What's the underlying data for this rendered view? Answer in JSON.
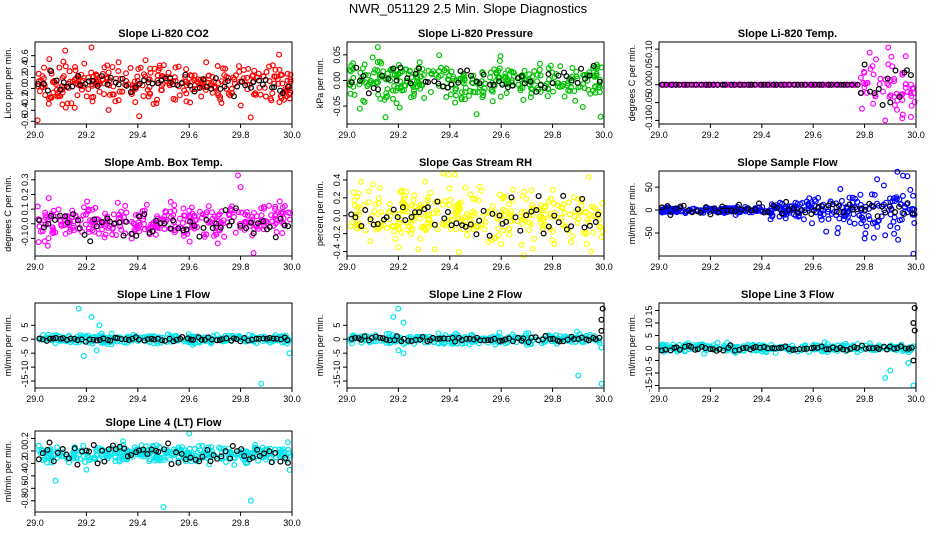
{
  "page": {
    "title": "NWR_051129  2.5 Min. Slope Diagnostics"
  },
  "chart_data": [
    {
      "id": "co2",
      "type": "scatter",
      "title": "Slope Li-820 CO2",
      "ylabel": "Lico ppm per min.",
      "xlabel": "",
      "xlim": [
        29.0,
        30.0
      ],
      "ylim": [
        -0.65,
        0.85
      ],
      "yticks": [
        -0.6,
        -0.4,
        -0.2,
        0.0,
        0.2,
        0.4,
        0.6
      ],
      "ytick_labels": [
        "-0.6",
        "-0.4",
        "-0.2",
        "0.0",
        "0.2",
        "0.4",
        "0.6"
      ],
      "xticks": [
        29.0,
        29.2,
        29.4,
        29.6,
        29.8,
        30.0
      ],
      "xtick_labels": [
        "29.0",
        "29.2",
        "29.4",
        "29.6",
        "29.8",
        "30.0"
      ],
      "series": [
        {
          "name": "all",
          "color": "#ff0000",
          "values_summary": "dense points around 0.1, spread about ±0.3, outliers to 0.75 and -0.6"
        },
        {
          "name": "selected",
          "color": "#000000",
          "values_summary": "sparse points around 0.05 to 0.1"
        }
      ],
      "gen": {
        "n": 320,
        "center": 0.1,
        "spread": 0.18,
        "outliers": [
          [
            29.22,
            0.75
          ],
          [
            29.01,
            -0.58
          ],
          [
            29.95,
            0.62
          ],
          [
            29.12,
            -0.35
          ]
        ],
        "black_n": 60,
        "black_center": 0.08,
        "black_spread": 0.08
      }
    },
    {
      "id": "pressure",
      "type": "scatter",
      "title": "Slope Li-820 Pressure",
      "ylabel": "kPa per min.",
      "xlabel": "",
      "xlim": [
        29.0,
        30.0
      ],
      "ylim": [
        -0.085,
        0.075
      ],
      "yticks": [
        -0.05,
        0.0,
        0.05
      ],
      "ytick_labels": [
        "-0.05",
        "0.00",
        "0.05"
      ],
      "xticks": [
        29.0,
        29.2,
        29.4,
        29.6,
        29.8,
        30.0
      ],
      "xtick_labels": [
        "29.0",
        "29.2",
        "29.4",
        "29.6",
        "29.8",
        "30.0"
      ],
      "series": [
        {
          "name": "all",
          "color": "#00c000",
          "values_summary": "dense points around 0.0, spread ±0.03, wider early"
        },
        {
          "name": "selected",
          "color": "#000000",
          "values_summary": "sparse points near 0.0"
        }
      ],
      "gen": {
        "n": 330,
        "center": 0.0,
        "spread": 0.02,
        "outliers": [
          [
            29.12,
            0.065
          ],
          [
            29.15,
            -0.072
          ],
          [
            29.05,
            -0.055
          ],
          [
            29.1,
            0.045
          ]
        ],
        "black_n": 55,
        "black_center": 0.0,
        "black_spread": 0.012
      }
    },
    {
      "id": "temp",
      "type": "scatter",
      "title": "Slope Li-820 Temp.",
      "ylabel": "degrees C per min.",
      "xlabel": "",
      "xlim": [
        29.0,
        30.0
      ],
      "ylim": [
        -0.11,
        0.12
      ],
      "yticks": [
        -0.1,
        -0.05,
        0.0,
        0.05,
        0.1
      ],
      "ytick_labels": [
        "-0.10",
        "-0.05",
        "0.00",
        "0.05",
        "0.10"
      ],
      "xticks": [
        29.0,
        29.2,
        29.4,
        29.6,
        29.8,
        30.0
      ],
      "xtick_labels": [
        "29.0",
        "29.2",
        "29.4",
        "29.6",
        "29.8",
        "30.0"
      ],
      "series": [
        {
          "name": "all",
          "color": "#ff00ff",
          "values_summary": "flat at 0.00 until 29.75, then scattered ±0.08"
        },
        {
          "name": "selected",
          "color": "#000000",
          "values_summary": "flat at 0.00, scattered after 29.8"
        }
      ],
      "gen": {
        "n": 260,
        "center": 0.0,
        "spread": 0.0,
        "late_start": 29.78,
        "late_spread": 0.04,
        "outliers": [
          [
            29.82,
            0.09
          ],
          [
            29.88,
            -0.1
          ],
          [
            29.98,
            -0.09
          ],
          [
            29.96,
            0.08
          ]
        ],
        "black_n": 60,
        "black_center": 0.0,
        "black_spread": 0.0
      }
    },
    {
      "id": "boxtemp",
      "type": "scatter",
      "title": "Slope Amb. Box Temp.",
      "ylabel": "degrees C per min.",
      "xlabel": "",
      "xlim": [
        29.0,
        30.0
      ],
      "ylim": [
        -0.22,
        0.36
      ],
      "yticks": [
        -0.1,
        0.0,
        0.1,
        0.2,
        0.3
      ],
      "ytick_labels": [
        "-0.1",
        "0.0",
        "0.1",
        "0.2",
        "0.3"
      ],
      "xticks": [
        29.0,
        29.2,
        29.4,
        29.6,
        29.8,
        30.0
      ],
      "xtick_labels": [
        "29.0",
        "29.2",
        "29.4",
        "29.6",
        "29.8",
        "30.0"
      ],
      "series": [
        {
          "name": "all",
          "color": "#ff00ff",
          "values_summary": "dense points around 0.02, spread ±0.1, peak near 29.8 at 0.3"
        },
        {
          "name": "selected",
          "color": "#000000",
          "values_summary": "sparse points near 0.0"
        }
      ],
      "gen": {
        "n": 320,
        "center": 0.02,
        "spread": 0.06,
        "outliers": [
          [
            29.79,
            0.33
          ],
          [
            29.8,
            0.25
          ],
          [
            29.85,
            -0.2
          ],
          [
            29.05,
            -0.15
          ]
        ],
        "black_n": 60,
        "black_center": 0.0,
        "black_spread": 0.05
      }
    },
    {
      "id": "rh",
      "type": "scatter",
      "title": "Slope Gas Stream RH",
      "ylabel": "percent per min.",
      "xlabel": "",
      "xlim": [
        29.0,
        30.0
      ],
      "ylim": [
        -0.45,
        0.5
      ],
      "yticks": [
        -0.4,
        -0.2,
        0.0,
        0.2,
        0.4
      ],
      "ytick_labels": [
        "-0.4",
        "-0.2",
        "0.0",
        "0.2",
        "0.4"
      ],
      "xticks": [
        29.0,
        29.2,
        29.4,
        29.6,
        29.8,
        30.0
      ],
      "xtick_labels": [
        "29.0",
        "29.2",
        "29.4",
        "29.6",
        "29.8",
        "30.0"
      ],
      "series": [
        {
          "name": "all",
          "color": "#ffff00",
          "values_summary": "dense points around 0.0, spread ±0.25"
        },
        {
          "name": "selected",
          "color": "#000000",
          "values_summary": "sparse points ±0.2"
        }
      ],
      "gen": {
        "n": 330,
        "center": 0.0,
        "spread": 0.14,
        "outliers": [
          [
            29.42,
            0.46
          ],
          [
            29.2,
            -0.35
          ],
          [
            29.95,
            -0.4
          ],
          [
            29.1,
            0.35
          ]
        ],
        "black_n": 55,
        "black_center": 0.0,
        "black_spread": 0.12
      }
    },
    {
      "id": "sampleflow",
      "type": "scatter",
      "title": "Slope Sample Flow",
      "ylabel": "ml/min per min.",
      "xlabel": "",
      "xlim": [
        29.0,
        30.0
      ],
      "ylim": [
        -100,
        85
      ],
      "yticks": [
        -50,
        0,
        50
      ],
      "ytick_labels": [
        "-50",
        "0",
        "50"
      ],
      "xticks": [
        29.0,
        29.2,
        29.4,
        29.6,
        29.8,
        30.0
      ],
      "xtick_labels": [
        "29.0",
        "29.2",
        "29.4",
        "29.6",
        "29.8",
        "30.0"
      ],
      "series": [
        {
          "name": "all",
          "color": "#0000ff",
          "values_summary": "near 0 before 29.4, widening scatter to ±60 by 30.0"
        },
        {
          "name": "selected",
          "color": "#000000",
          "values_summary": "near 0, a few to ±30, one at -95"
        }
      ],
      "gen": {
        "n": 330,
        "center": 0,
        "spread": 3,
        "growth": 30,
        "outliers": [
          [
            29.95,
            75
          ],
          [
            29.8,
            -62
          ],
          [
            29.99,
            -95
          ],
          [
            29.88,
            -55
          ]
        ],
        "black_n": 60,
        "black_center": 0,
        "black_spread": 8
      }
    },
    {
      "id": "line1",
      "type": "scatter",
      "title": "Slope Line 1 Flow",
      "ylabel": "ml/min per min.",
      "xlabel": "",
      "xlim": [
        29.0,
        30.0
      ],
      "ylim": [
        -17.5,
        13
      ],
      "yticks": [
        -15,
        -10,
        -5,
        0,
        5
      ],
      "ytick_labels": [
        "-15",
        "-10",
        "-5",
        "0",
        "5"
      ],
      "xticks": [
        29.0,
        29.2,
        29.4,
        29.6,
        29.8,
        30.0
      ],
      "xtick_labels": [
        "29.0",
        "29.2",
        "29.4",
        "29.6",
        "29.8",
        "30.0"
      ],
      "series": [
        {
          "name": "all",
          "color": "#00e5ee",
          "values_summary": "tight band around 0, few outliers ±10"
        },
        {
          "name": "selected",
          "color": "#000000",
          "values_summary": "on 0 line"
        }
      ],
      "gen": {
        "n": 300,
        "center": 0,
        "spread": 0.8,
        "outliers": [
          [
            29.17,
            11
          ],
          [
            29.22,
            8
          ],
          [
            29.25,
            5
          ],
          [
            29.19,
            -6
          ],
          [
            29.24,
            -4
          ],
          [
            29.88,
            -16
          ],
          [
            29.99,
            -5
          ]
        ],
        "black_n": 70,
        "black_center": 0,
        "black_spread": 0.4
      }
    },
    {
      "id": "line2",
      "type": "scatter",
      "title": "Slope Line 2 Flow",
      "ylabel": "ml/min per min.",
      "xlabel": "",
      "xlim": [
        29.0,
        30.0
      ],
      "ylim": [
        -17.5,
        13
      ],
      "yticks": [
        -15,
        -10,
        -5,
        0,
        5
      ],
      "ytick_labels": [
        "-15",
        "-10",
        "-5",
        "0",
        "5"
      ],
      "xticks": [
        29.0,
        29.2,
        29.4,
        29.6,
        29.8,
        30.0
      ],
      "xtick_labels": [
        "29.0",
        "29.2",
        "29.4",
        "29.6",
        "29.8",
        "30.0"
      ],
      "series": [
        {
          "name": "all",
          "color": "#00e5ee",
          "values_summary": "tight band around 0, outliers around 29.2 and at 30.0"
        },
        {
          "name": "selected",
          "color": "#000000",
          "values_summary": "on 0 line, spikes at 30.0"
        }
      ],
      "gen": {
        "n": 300,
        "center": 0,
        "spread": 0.9,
        "outliers": [
          [
            29.2,
            11
          ],
          [
            29.18,
            8
          ],
          [
            29.22,
            6
          ],
          [
            29.2,
            -4
          ],
          [
            29.22,
            -5
          ],
          [
            29.9,
            -13
          ],
          [
            29.99,
            -16
          ],
          [
            29.99,
            -3
          ]
        ],
        "black_n": 70,
        "black_center": 0,
        "black_spread": 0.5,
        "black_extra": [
          [
            29.995,
            11
          ],
          [
            29.99,
            7
          ],
          [
            29.99,
            3
          ]
        ]
      }
    },
    {
      "id": "line3",
      "type": "scatter",
      "title": "Slope Line 3 Flow",
      "ylabel": "ml/min per min.",
      "xlabel": "",
      "xlim": [
        29.0,
        30.0
      ],
      "ylim": [
        -16,
        18
      ],
      "yticks": [
        -15,
        -10,
        -5,
        0,
        5,
        10,
        15
      ],
      "ytick_labels": [
        "-15",
        "-10",
        "-5",
        "0",
        "5",
        "10",
        "15"
      ],
      "xticks": [
        29.0,
        29.2,
        29.4,
        29.6,
        29.8,
        30.0
      ],
      "xtick_labels": [
        "29.0",
        "29.2",
        "29.4",
        "29.6",
        "29.8",
        "30.0"
      ],
      "series": [
        {
          "name": "all",
          "color": "#00e5ee",
          "values_summary": "tight band around 0, outliers near 29.9 down to -15"
        },
        {
          "name": "selected",
          "color": "#000000",
          "values_summary": "on 0 line, spikes at 30.0 to 16"
        }
      ],
      "gen": {
        "n": 300,
        "center": 0,
        "spread": 0.8,
        "outliers": [
          [
            29.88,
            -12
          ],
          [
            29.9,
            -9
          ],
          [
            29.99,
            -15
          ],
          [
            29.97,
            -6
          ]
        ],
        "black_n": 70,
        "black_center": 0,
        "black_spread": 0.5,
        "black_extra": [
          [
            29.995,
            16
          ],
          [
            29.99,
            10
          ],
          [
            29.995,
            7
          ],
          [
            29.99,
            -5
          ]
        ]
      }
    },
    {
      "id": "line4",
      "type": "scatter",
      "title": "Slope Line 4 (LT) Flow",
      "ylabel": "ml/min per min.",
      "xlabel": "",
      "xlim": [
        29.0,
        30.0
      ],
      "ylim": [
        -0.98,
        0.32
      ],
      "yticks": [
        -0.8,
        -0.6,
        -0.4,
        -0.2,
        0.0,
        0.2
      ],
      "ytick_labels": [
        "-0.8",
        "-0.6",
        "-0.4",
        "-0.2",
        "0.0",
        "0.2"
      ],
      "xticks": [
        29.0,
        29.2,
        29.4,
        29.6,
        29.8,
        30.0
      ],
      "xtick_labels": [
        "29.0",
        "29.2",
        "29.4",
        "29.6",
        "29.8",
        "30.0"
      ],
      "series": [
        {
          "name": "all",
          "color": "#00e5ee",
          "values_summary": "dense band around -0.05, spread ±0.12, outliers to -0.9"
        },
        {
          "name": "selected",
          "color": "#000000",
          "values_summary": "around -0.05"
        }
      ],
      "gen": {
        "n": 330,
        "center": -0.05,
        "spread": 0.07,
        "outliers": [
          [
            29.08,
            -0.48
          ],
          [
            29.5,
            -0.9
          ],
          [
            29.84,
            -0.8
          ],
          [
            29.6,
            0.28
          ],
          [
            29.2,
            -0.3
          ]
        ],
        "black_n": 65,
        "black_center": -0.05,
        "black_spread": 0.07
      }
    }
  ]
}
